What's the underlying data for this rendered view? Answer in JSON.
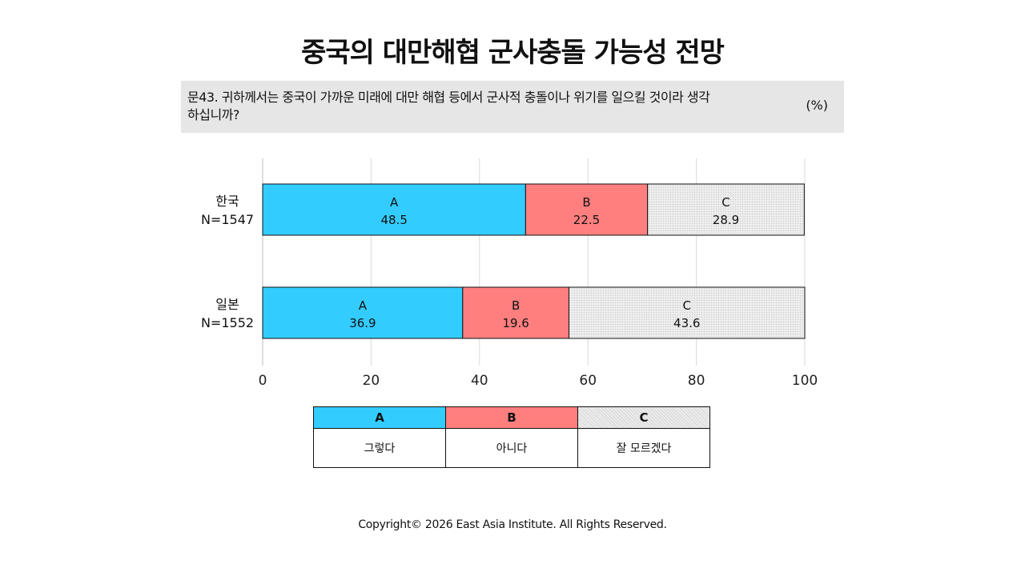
{
  "title": "중국의 대만해협 군사충돌 가능성 전망",
  "question": {
    "text": "문43. 귀하께서는 중국이 가까운 미래에 대만 해협 등에서 군사적 충돌이나 위기를 일으킬 것이라 생각하십니까?",
    "unit": "(%)"
  },
  "colors": {
    "A": "#33ccff",
    "B": "#ff7f7f",
    "C": "#e8e8e8"
  },
  "chart_data": {
    "type": "bar",
    "orientation": "horizontal",
    "stacked": true,
    "categories": [
      {
        "name": "한국",
        "n": "N=1547"
      },
      {
        "name": "일본",
        "n": "N=1552"
      }
    ],
    "series": [
      {
        "name": "A",
        "values": [
          48.5,
          36.9
        ]
      },
      {
        "name": "B",
        "values": [
          22.5,
          19.6
        ]
      },
      {
        "name": "C",
        "values": [
          28.9,
          43.6
        ]
      }
    ],
    "xlim": [
      0,
      100
    ],
    "xticks": [
      "0",
      "20",
      "40",
      "60",
      "80",
      "100"
    ],
    "grid": true
  },
  "legend": {
    "A": {
      "key": "A",
      "label": "그렇다"
    },
    "B": {
      "key": "B",
      "label": "아니다"
    },
    "C": {
      "key": "C",
      "label": "잘 모르겠다"
    }
  },
  "footer": {
    "copyright": "Copyright© 2026 East Asia Institute. All Rights Reserved."
  }
}
